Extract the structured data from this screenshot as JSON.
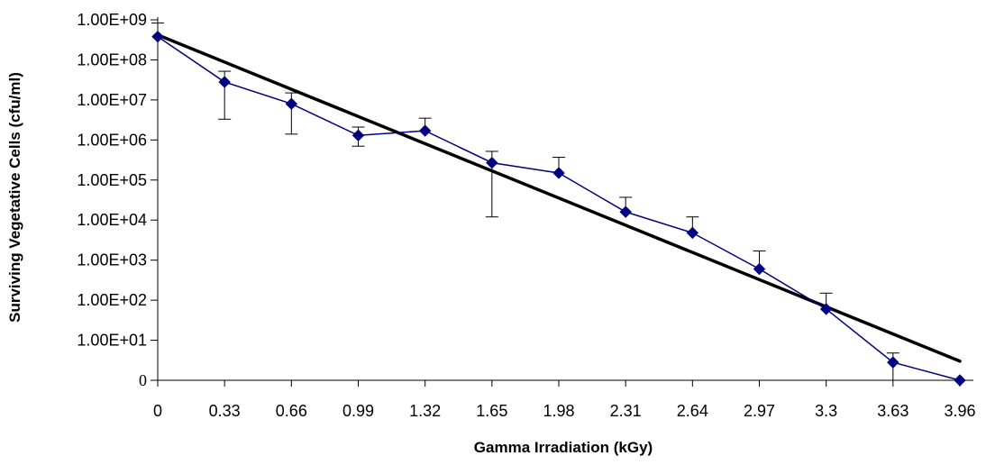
{
  "chart_data": {
    "type": "line",
    "title": "",
    "xlabel": "Gamma Irradiation (kGy)",
    "ylabel": "Surviving Vegetative Cells (cfu/ml)",
    "y_scale": "log",
    "y_ticks": [
      "0",
      "1.00E+01",
      "1.00E+02",
      "1.00E+03",
      "1.00E+04",
      "1.00E+05",
      "1.00E+06",
      "1.00E+07",
      "1.00E+08",
      "1.00E+09"
    ],
    "x_ticks": [
      "0",
      "0.33",
      "0.66",
      "0.99",
      "1.32",
      "1.65",
      "1.98",
      "2.31",
      "2.64",
      "2.97",
      "3.3",
      "3.63",
      "3.96"
    ],
    "grid": false,
    "legend": "none",
    "series": [
      {
        "kind": "observed",
        "color": "#000080",
        "marker": "diamond",
        "x": [
          0,
          0.33,
          0.66,
          0.99,
          1.32,
          1.65,
          1.98,
          2.31,
          2.64,
          2.97,
          3.3,
          3.63,
          3.96
        ],
        "y": [
          380000000,
          28000000,
          8000000,
          1300000,
          1700000,
          270000,
          150000,
          16000,
          4800,
          600,
          60,
          2.8,
          1
        ],
        "error_upper": [
          830000000,
          52000000,
          15000000,
          2100000,
          3500000,
          520000,
          370000,
          37000,
          12000,
          1700,
          150,
          4.8,
          null
        ],
        "error_lower": [
          null,
          3300000,
          1400000,
          700000,
          null,
          12000,
          null,
          null,
          null,
          null,
          null,
          1,
          null
        ]
      },
      {
        "kind": "fitted",
        "color": "#000000",
        "x": [
          0,
          3.96
        ],
        "y": [
          420000000,
          3
        ]
      }
    ]
  }
}
